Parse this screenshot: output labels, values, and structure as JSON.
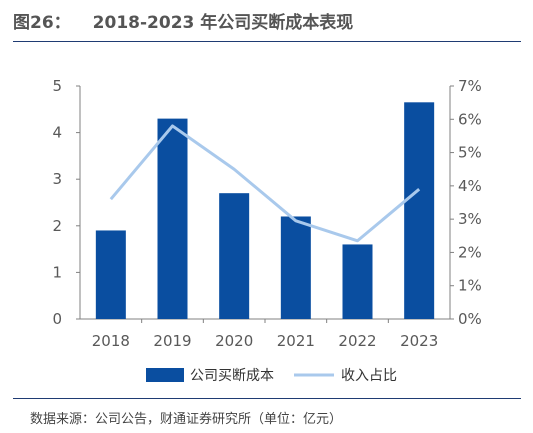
{
  "figure": {
    "number": "图26：",
    "title": "2018-2023 年公司买断成本表现",
    "source": "数据来源：公司公告，财通证券研究所（单位：亿元）"
  },
  "colors": {
    "bar": "#0a4ea0",
    "line": "#a9c9ec",
    "axis": "#808080",
    "title_rule": "#1f3b73"
  },
  "chart_data": {
    "type": "bar",
    "categories": [
      "2018",
      "2019",
      "2020",
      "2021",
      "2022",
      "2023"
    ],
    "series": [
      {
        "name": "公司买断成本",
        "type": "bar",
        "axis": "left",
        "values": [
          1.9,
          4.3,
          2.7,
          2.2,
          1.6,
          4.65
        ]
      },
      {
        "name": "收入占比",
        "type": "line",
        "axis": "right",
        "values": [
          3.6,
          5.8,
          4.5,
          2.95,
          2.35,
          3.9
        ]
      }
    ],
    "y_left": {
      "ylim": [
        0,
        5
      ],
      "ticks": [
        "0",
        "1",
        "2",
        "3",
        "4",
        "5"
      ]
    },
    "y_right": {
      "ylim": [
        0,
        7
      ],
      "ticks": [
        "0%",
        "1%",
        "2%",
        "3%",
        "4%",
        "5%",
        "6%",
        "7%"
      ]
    },
    "legend_position": "bottom",
    "grid": false
  }
}
